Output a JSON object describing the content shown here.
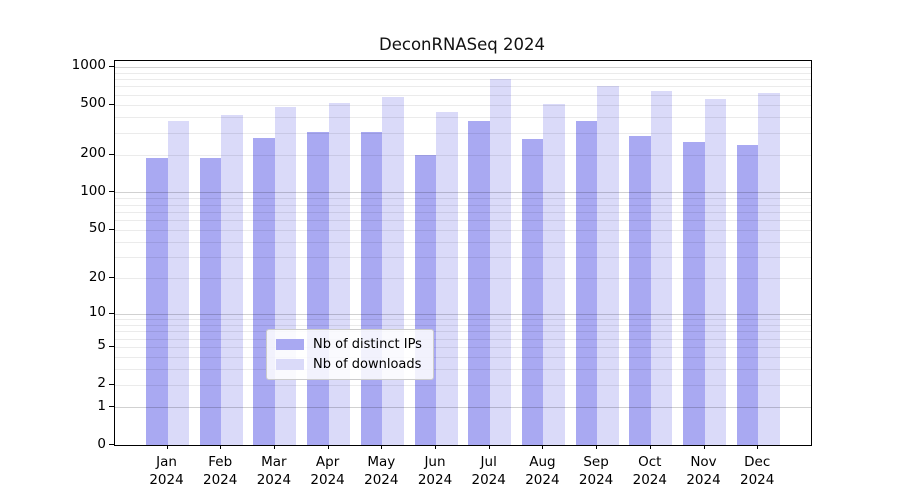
{
  "title": "DeconRNASeq 2024",
  "colors": {
    "distinct_ips": "#a9a9f2",
    "downloads": "#dadaf9",
    "grid_minor": "rgba(0,0,0,0.08)",
    "grid_major": "rgba(0,0,0,0.18)",
    "axis_line": "#000000",
    "legend_border": "#cccccc"
  },
  "legend": {
    "items": [
      {
        "id": "distinct-ips",
        "label": "Nb of distinct IPs",
        "color": "#a9a9f2"
      },
      {
        "id": "downloads",
        "label": "Nb of downloads",
        "color": "#dadaf9"
      }
    ]
  },
  "y_axis": {
    "tick_labels": [
      "1000",
      "500",
      "200",
      "100",
      "50",
      "20",
      "10",
      "5",
      "2",
      "1",
      "0"
    ],
    "tick_values": [
      1000,
      500,
      200,
      100,
      50,
      20,
      10,
      5,
      2,
      1,
      0
    ]
  },
  "x_axis": {
    "months": [
      "Jan",
      "Feb",
      "Mar",
      "Apr",
      "May",
      "Jun",
      "Jul",
      "Aug",
      "Sep",
      "Oct",
      "Nov",
      "Dec"
    ],
    "year": "2024"
  },
  "chart_data": {
    "type": "bar",
    "title": "DeconRNASeq 2024",
    "categories": [
      "Jan 2024",
      "Feb 2024",
      "Mar 2024",
      "Apr 2024",
      "May 2024",
      "Jun 2024",
      "Jul 2024",
      "Aug 2024",
      "Sep 2024",
      "Oct 2024",
      "Nov 2024",
      "Dec 2024"
    ],
    "series": [
      {
        "name": "Nb of distinct IPs",
        "color": "#a9a9f2",
        "values": [
          190,
          190,
          272,
          305,
          305,
          200,
          372,
          268,
          372,
          283,
          253,
          240
        ]
      },
      {
        "name": "Nb of downloads",
        "color": "#dadaf9",
        "values": [
          370,
          415,
          480,
          515,
          580,
          440,
          805,
          510,
          705,
          645,
          555,
          620
        ]
      }
    ],
    "yscale": "log1p",
    "ylim": [
      0,
      1120
    ],
    "y_ticks": [
      0,
      1,
      2,
      5,
      10,
      20,
      50,
      100,
      200,
      500,
      1000
    ],
    "grid": "horizontal log gridlines drawn over bars; powers of 10 darker",
    "legend_position": "lower center"
  }
}
